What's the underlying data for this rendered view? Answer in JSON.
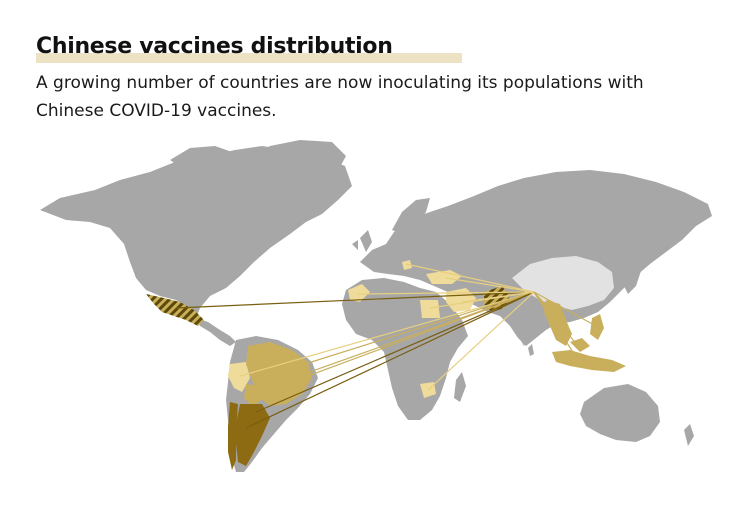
{
  "header": {
    "title": "Chinese vaccines distribution",
    "subtitle": "A growing number of countries are now inoculating its populations with Chinese COVID-19 vaccines."
  },
  "colors": {
    "land": "#a7a7a7",
    "china": "#e2e2e2",
    "light": "#f0dc9a",
    "medium": "#c9af5c",
    "dark": "#8c6b12",
    "stripe": "#5e4a08",
    "line": "#b99a3a"
  },
  "map": {
    "origin": "China",
    "recipients": [
      {
        "name": "Mexico",
        "tier": "striped"
      },
      {
        "name": "Peru",
        "tier": "light"
      },
      {
        "name": "Brazil",
        "tier": "medium"
      },
      {
        "name": "Bolivia",
        "tier": "medium"
      },
      {
        "name": "Chile",
        "tier": "dark"
      },
      {
        "name": "Argentina",
        "tier": "dark"
      },
      {
        "name": "Morocco",
        "tier": "light"
      },
      {
        "name": "Egypt",
        "tier": "light"
      },
      {
        "name": "Turkey",
        "tier": "light"
      },
      {
        "name": "Serbia",
        "tier": "light"
      },
      {
        "name": "UAE",
        "tier": "light"
      },
      {
        "name": "Pakistan",
        "tier": "striped"
      },
      {
        "name": "Zimbabwe",
        "tier": "light"
      },
      {
        "name": "Thailand",
        "tier": "medium"
      },
      {
        "name": "Cambodia",
        "tier": "medium"
      },
      {
        "name": "Philippines",
        "tier": "medium"
      },
      {
        "name": "Indonesia",
        "tier": "medium"
      },
      {
        "name": "Malaysia",
        "tier": "medium"
      }
    ]
  }
}
